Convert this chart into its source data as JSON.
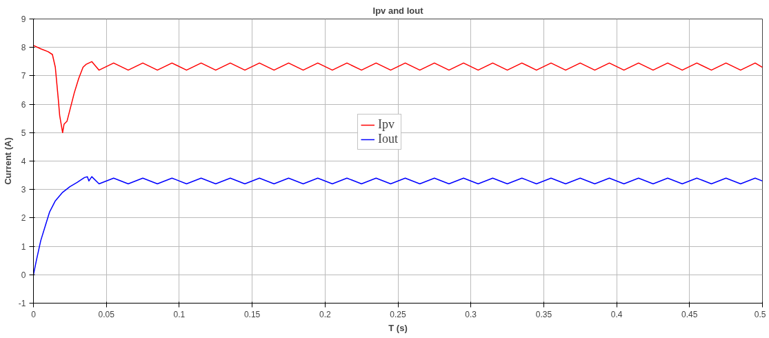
{
  "chart_data": {
    "type": "line",
    "title": "Ipv and Iout",
    "xlabel": "T (s)",
    "ylabel": "Current (A)",
    "xlim": [
      0,
      0.5
    ],
    "ylim": [
      -1,
      9
    ],
    "xticks": [
      0,
      0.05,
      0.1,
      0.15,
      0.2,
      0.25,
      0.3,
      0.35,
      0.4,
      0.45,
      0.5
    ],
    "yticks": [
      -1,
      0,
      1,
      2,
      3,
      4,
      5,
      6,
      7,
      8,
      9
    ],
    "grid": true,
    "legend": "center",
    "line_style": "solid",
    "marker": "none",
    "series": [
      {
        "name": "Ipv",
        "color": "#ff0000",
        "x": [
          0,
          0.005,
          0.01,
          0.013,
          0.015,
          0.017,
          0.018,
          0.02,
          0.021,
          0.023,
          0.025,
          0.028,
          0.031,
          0.034,
          0.036,
          0.04,
          0.045,
          0.055,
          0.065,
          0.075,
          0.085,
          0.095,
          0.105,
          0.115,
          0.125,
          0.135,
          0.145,
          0.155,
          0.165,
          0.175,
          0.185,
          0.195,
          0.205,
          0.215,
          0.225,
          0.235,
          0.245,
          0.255,
          0.265,
          0.275,
          0.285,
          0.295,
          0.305,
          0.315,
          0.325,
          0.335,
          0.345,
          0.355,
          0.365,
          0.375,
          0.385,
          0.395,
          0.405,
          0.415,
          0.425,
          0.435,
          0.445,
          0.455,
          0.465,
          0.475,
          0.485,
          0.495,
          0.5
        ],
        "values": [
          8.07,
          7.95,
          7.85,
          7.75,
          7.3,
          6.2,
          5.6,
          5.0,
          5.3,
          5.4,
          5.8,
          6.4,
          6.9,
          7.3,
          7.4,
          7.5,
          7.2,
          7.45,
          7.2,
          7.45,
          7.2,
          7.45,
          7.2,
          7.45,
          7.2,
          7.45,
          7.2,
          7.45,
          7.2,
          7.45,
          7.2,
          7.45,
          7.2,
          7.45,
          7.2,
          7.45,
          7.2,
          7.45,
          7.2,
          7.45,
          7.2,
          7.45,
          7.2,
          7.45,
          7.2,
          7.45,
          7.2,
          7.45,
          7.2,
          7.45,
          7.2,
          7.45,
          7.2,
          7.45,
          7.2,
          7.45,
          7.2,
          7.45,
          7.2,
          7.45,
          7.2,
          7.45,
          7.3
        ]
      },
      {
        "name": "Iout",
        "color": "#0000ff",
        "x": [
          0,
          0.002,
          0.005,
          0.008,
          0.011,
          0.015,
          0.02,
          0.025,
          0.03,
          0.035,
          0.037,
          0.038,
          0.04,
          0.045,
          0.055,
          0.065,
          0.075,
          0.085,
          0.095,
          0.105,
          0.115,
          0.125,
          0.135,
          0.145,
          0.155,
          0.165,
          0.175,
          0.185,
          0.195,
          0.205,
          0.215,
          0.225,
          0.235,
          0.245,
          0.255,
          0.265,
          0.275,
          0.285,
          0.295,
          0.305,
          0.315,
          0.325,
          0.335,
          0.345,
          0.355,
          0.365,
          0.375,
          0.385,
          0.395,
          0.405,
          0.415,
          0.425,
          0.435,
          0.445,
          0.455,
          0.465,
          0.475,
          0.485,
          0.495,
          0.5
        ],
        "values": [
          0,
          0.5,
          1.2,
          1.7,
          2.2,
          2.6,
          2.9,
          3.1,
          3.25,
          3.42,
          3.45,
          3.3,
          3.45,
          3.2,
          3.4,
          3.2,
          3.4,
          3.2,
          3.4,
          3.2,
          3.4,
          3.2,
          3.4,
          3.2,
          3.4,
          3.2,
          3.4,
          3.2,
          3.4,
          3.2,
          3.4,
          3.2,
          3.4,
          3.2,
          3.4,
          3.2,
          3.4,
          3.2,
          3.4,
          3.2,
          3.4,
          3.2,
          3.4,
          3.2,
          3.4,
          3.2,
          3.4,
          3.2,
          3.4,
          3.2,
          3.4,
          3.2,
          3.4,
          3.2,
          3.4,
          3.2,
          3.4,
          3.2,
          3.4,
          3.3
        ]
      }
    ]
  }
}
